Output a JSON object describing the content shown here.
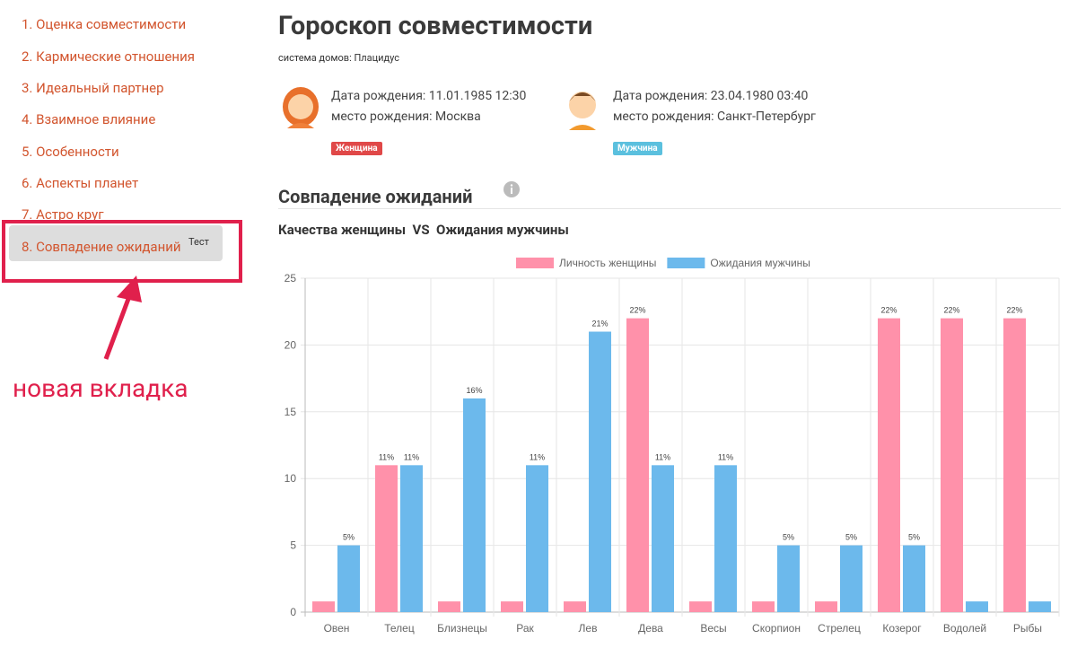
{
  "sidebar": {
    "items": [
      "1. Оценка совместимости",
      "2. Кармические отношения",
      "3. Идеальный партнер",
      "4. Взаимное влияние",
      "5. Особенности",
      "6. Аспекты планет",
      "7. Астро круг",
      "8. Совпадение ожиданий"
    ],
    "active_badge": "Тест",
    "annotation": "новая вкладка"
  },
  "header": {
    "title": "Гороскоп совместимости",
    "subtitle": "система домов: Плацидус"
  },
  "people": [
    {
      "birth": "Дата рождения: 11.01.1985 12:30",
      "place": "место рождения: Москва",
      "badge": "Женщина"
    },
    {
      "birth": "Дата рождения: 23.04.1980 03:40",
      "place": "место рождения: Санкт-Петербург",
      "badge": "Мужчина"
    }
  ],
  "section": {
    "title": "Совпадение ожиданий"
  },
  "chart_data": {
    "type": "bar",
    "title": "Качества женщины  VS  Ожидания мужчины",
    "categories": [
      "Овен",
      "Телец",
      "Близнецы",
      "Рак",
      "Лев",
      "Дева",
      "Весы",
      "Скорпион",
      "Стрелец",
      "Козерог",
      "Водолей",
      "Рыбы"
    ],
    "series": [
      {
        "name": "Личность женщины",
        "color": "#ff91aa",
        "values": [
          0.8,
          11,
          0.8,
          0.8,
          0.8,
          22,
          0.8,
          0.8,
          0.8,
          22,
          22,
          22
        ],
        "value_labels": [
          null,
          "11%",
          null,
          null,
          null,
          "22%",
          null,
          null,
          null,
          "22%",
          "22%",
          "22%"
        ]
      },
      {
        "name": "Ожидания мужчины",
        "color": "#6cb9ec",
        "values": [
          5,
          11,
          16,
          11,
          21,
          11,
          11,
          5,
          5,
          5,
          0.8,
          0.8
        ],
        "value_labels": [
          "5%",
          "11%",
          "16%",
          "11%",
          "21%",
          "11%",
          "11%",
          "5%",
          "5%",
          "5%",
          null,
          null
        ]
      }
    ],
    "ylim": [
      0,
      25
    ],
    "yticks": [
      0,
      5,
      10,
      15,
      20,
      25
    ],
    "grid": true
  }
}
